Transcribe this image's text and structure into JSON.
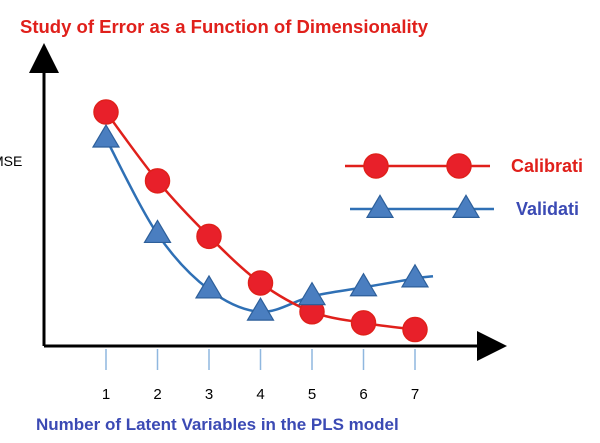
{
  "chart_data": {
    "type": "line",
    "title": "Study of Error as a Function of Dimensionality",
    "xlabel": "Number of Latent Variables in the PLS model",
    "ylabel": "MSE",
    "categories": [
      "1",
      "2",
      "3",
      "4",
      "5",
      "6",
      "7"
    ],
    "y_ticks_shown": false,
    "grid": false,
    "legend_placement": "right",
    "series": [
      {
        "name": "Calibration",
        "legend_label_visible": "Calibrati",
        "marker": "circle",
        "color": "#e0201b",
        "fill": "#e8202a",
        "smooth": true,
        "values": [
          100,
          69,
          44,
          23,
          10,
          5,
          2
        ]
      },
      {
        "name": "Validation",
        "legend_label_visible": "Validati",
        "marker": "triangle",
        "color": "#2f70b5",
        "fill": "#4a7ec0",
        "smooth": true,
        "values": [
          88,
          45,
          20,
          10,
          17,
          21,
          25
        ]
      }
    ],
    "ylim": [
      0,
      100
    ],
    "colors": {
      "title": "#e0201b",
      "xlabel": "#3b4ab4",
      "axis": "#000000",
      "tick_guides": "#8fb7df"
    }
  }
}
